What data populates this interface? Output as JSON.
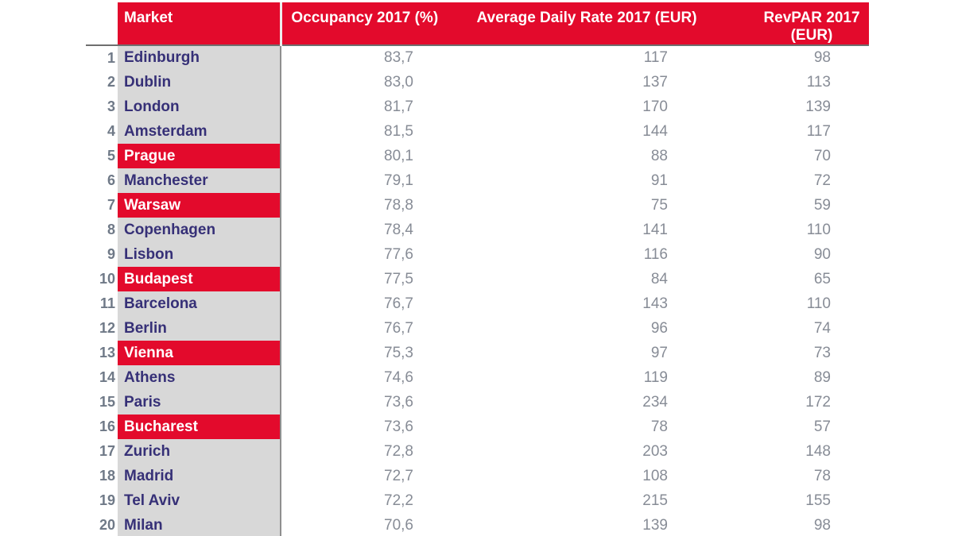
{
  "colors": {
    "brand_red": "#E30A2C",
    "header_text": "#FFFFFF",
    "row_gray": "#D8D8D8",
    "market_text": "#363077",
    "rank_text": "#6F7987",
    "value_text": "#878C96",
    "header_rule": "#6F6F6F",
    "column_rule": "#8F8F8F"
  },
  "chart_data": {
    "type": "table",
    "columns": [
      "Market",
      "Occupancy 2017 (%)",
      "Average Daily Rate 2017 (EUR)",
      "RevPAR 2017 (EUR)"
    ],
    "rows": [
      {
        "rank": "1",
        "market": "Edinburgh",
        "occupancy": "83,7",
        "adr": "117",
        "revpar": "98",
        "highlight": false
      },
      {
        "rank": "2",
        "market": "Dublin",
        "occupancy": "83,0",
        "adr": "137",
        "revpar": "113",
        "highlight": false
      },
      {
        "rank": "3",
        "market": "London",
        "occupancy": "81,7",
        "adr": "170",
        "revpar": "139",
        "highlight": false
      },
      {
        "rank": "4",
        "market": "Amsterdam",
        "occupancy": "81,5",
        "adr": "144",
        "revpar": "117",
        "highlight": false
      },
      {
        "rank": "5",
        "market": "Prague",
        "occupancy": "80,1",
        "adr": "88",
        "revpar": "70",
        "highlight": true
      },
      {
        "rank": "6",
        "market": "Manchester",
        "occupancy": "79,1",
        "adr": "91",
        "revpar": "72",
        "highlight": false
      },
      {
        "rank": "7",
        "market": "Warsaw",
        "occupancy": "78,8",
        "adr": "75",
        "revpar": "59",
        "highlight": true
      },
      {
        "rank": "8",
        "market": "Copenhagen",
        "occupancy": "78,4",
        "adr": "141",
        "revpar": "110",
        "highlight": false
      },
      {
        "rank": "9",
        "market": "Lisbon",
        "occupancy": "77,6",
        "adr": "116",
        "revpar": "90",
        "highlight": false
      },
      {
        "rank": "10",
        "market": "Budapest",
        "occupancy": "77,5",
        "adr": "84",
        "revpar": "65",
        "highlight": true
      },
      {
        "rank": "11",
        "market": "Barcelona",
        "occupancy": "76,7",
        "adr": "143",
        "revpar": "110",
        "highlight": false
      },
      {
        "rank": "12",
        "market": "Berlin",
        "occupancy": "76,7",
        "adr": "96",
        "revpar": "74",
        "highlight": false
      },
      {
        "rank": "13",
        "market": "Vienna",
        "occupancy": "75,3",
        "adr": "97",
        "revpar": "73",
        "highlight": true
      },
      {
        "rank": "14",
        "market": "Athens",
        "occupancy": "74,6",
        "adr": "119",
        "revpar": "89",
        "highlight": false
      },
      {
        "rank": "15",
        "market": "Paris",
        "occupancy": "73,6",
        "adr": "234",
        "revpar": "172",
        "highlight": false
      },
      {
        "rank": "16",
        "market": "Bucharest",
        "occupancy": "73,6",
        "adr": "78",
        "revpar": "57",
        "highlight": true
      },
      {
        "rank": "17",
        "market": "Zurich",
        "occupancy": "72,8",
        "adr": "203",
        "revpar": "148",
        "highlight": false
      },
      {
        "rank": "18",
        "market": "Madrid",
        "occupancy": "72,7",
        "adr": "108",
        "revpar": "78",
        "highlight": false
      },
      {
        "rank": "19",
        "market": "Tel Aviv",
        "occupancy": "72,2",
        "adr": "215",
        "revpar": "155",
        "highlight": false
      },
      {
        "rank": "20",
        "market": "Milan",
        "occupancy": "70,6",
        "adr": "139",
        "revpar": "98",
        "highlight": false
      }
    ],
    "highlighted_markets": [
      "Prague",
      "Warsaw",
      "Budapest",
      "Vienna",
      "Bucharest"
    ]
  }
}
